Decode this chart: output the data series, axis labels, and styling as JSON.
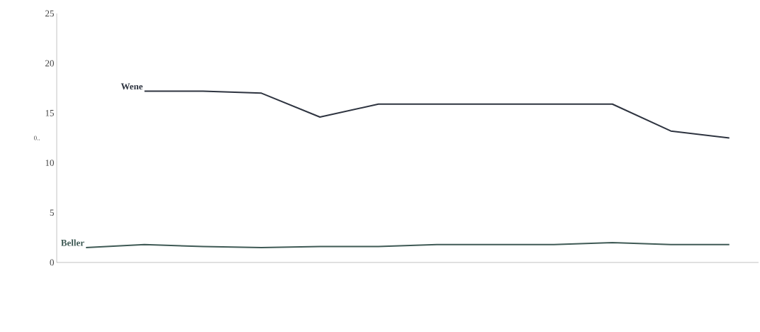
{
  "chart_data": {
    "type": "line",
    "ylabel": "0..",
    "categories": [
      null,
      null,
      null,
      null,
      null,
      null,
      null,
      null,
      null,
      null,
      null,
      null
    ],
    "series": [
      {
        "name": "Wene",
        "color": "#2e3440",
        "values": [
          null,
          17.2,
          17.2,
          17.0,
          14.6,
          15.9,
          15.9,
          15.9,
          15.9,
          15.9,
          13.2,
          12.5
        ]
      },
      {
        "name": "Beller",
        "color": "#3f5a55",
        "values": [
          1.5,
          1.8,
          1.6,
          1.5,
          1.6,
          1.6,
          1.8,
          1.8,
          1.8,
          2.0,
          1.8,
          1.8
        ]
      }
    ],
    "ylim": [
      0,
      25
    ],
    "yticks": [
      0,
      5,
      10,
      15,
      20,
      25
    ],
    "tick_labels": "y",
    "grid": false,
    "legend": false,
    "marker": "none",
    "line_style": "solid"
  }
}
